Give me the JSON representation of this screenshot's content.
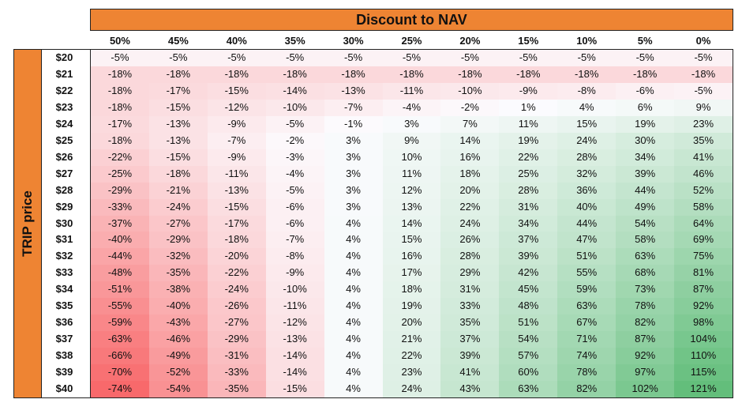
{
  "chart_data": {
    "type": "heatmap",
    "title": "Discount to NAV",
    "ylabel": "TRIP price",
    "x": [
      "50%",
      "45%",
      "40%",
      "35%",
      "30%",
      "25%",
      "20%",
      "15%",
      "10%",
      "5%",
      "0%"
    ],
    "y": [
      "$20",
      "$21",
      "$22",
      "$23",
      "$24",
      "$25",
      "$26",
      "$27",
      "$28",
      "$29",
      "$30",
      "$31",
      "$32",
      "$33",
      "$34",
      "$35",
      "$36",
      "$37",
      "$38",
      "$39",
      "$40"
    ],
    "values": [
      [
        "-5%",
        "-5%",
        "-5%",
        "-5%",
        "-5%",
        "-5%",
        "-5%",
        "-5%",
        "-5%",
        "-5%",
        "-5%"
      ],
      [
        "-18%",
        "-18%",
        "-18%",
        "-18%",
        "-18%",
        "-18%",
        "-18%",
        "-18%",
        "-18%",
        "-18%",
        "-18%"
      ],
      [
        "-18%",
        "-17%",
        "-15%",
        "-14%",
        "-13%",
        "-11%",
        "-10%",
        "-9%",
        "-8%",
        "-6%",
        "-5%"
      ],
      [
        "-18%",
        "-15%",
        "-12%",
        "-10%",
        "-7%",
        "-4%",
        "-2%",
        "1%",
        "4%",
        "6%",
        "9%"
      ],
      [
        "-17%",
        "-13%",
        "-9%",
        "-5%",
        "-1%",
        "3%",
        "7%",
        "11%",
        "15%",
        "19%",
        "23%"
      ],
      [
        "-18%",
        "-13%",
        "-7%",
        "-2%",
        "3%",
        "9%",
        "14%",
        "19%",
        "24%",
        "30%",
        "35%"
      ],
      [
        "-22%",
        "-15%",
        "-9%",
        "-3%",
        "3%",
        "10%",
        "16%",
        "22%",
        "28%",
        "34%",
        "41%"
      ],
      [
        "-25%",
        "-18%",
        "-11%",
        "-4%",
        "3%",
        "11%",
        "18%",
        "25%",
        "32%",
        "39%",
        "46%"
      ],
      [
        "-29%",
        "-21%",
        "-13%",
        "-5%",
        "3%",
        "12%",
        "20%",
        "28%",
        "36%",
        "44%",
        "52%"
      ],
      [
        "-33%",
        "-24%",
        "-15%",
        "-6%",
        "3%",
        "13%",
        "22%",
        "31%",
        "40%",
        "49%",
        "58%"
      ],
      [
        "-37%",
        "-27%",
        "-17%",
        "-6%",
        "4%",
        "14%",
        "24%",
        "34%",
        "44%",
        "54%",
        "64%"
      ],
      [
        "-40%",
        "-29%",
        "-18%",
        "-7%",
        "4%",
        "15%",
        "26%",
        "37%",
        "47%",
        "58%",
        "69%"
      ],
      [
        "-44%",
        "-32%",
        "-20%",
        "-8%",
        "4%",
        "16%",
        "28%",
        "39%",
        "51%",
        "63%",
        "75%"
      ],
      [
        "-48%",
        "-35%",
        "-22%",
        "-9%",
        "4%",
        "17%",
        "29%",
        "42%",
        "55%",
        "68%",
        "81%"
      ],
      [
        "-51%",
        "-38%",
        "-24%",
        "-10%",
        "4%",
        "18%",
        "31%",
        "45%",
        "59%",
        "73%",
        "87%"
      ],
      [
        "-55%",
        "-40%",
        "-26%",
        "-11%",
        "4%",
        "19%",
        "33%",
        "48%",
        "63%",
        "78%",
        "92%"
      ],
      [
        "-59%",
        "-43%",
        "-27%",
        "-12%",
        "4%",
        "20%",
        "35%",
        "51%",
        "67%",
        "82%",
        "98%"
      ],
      [
        "-63%",
        "-46%",
        "-29%",
        "-13%",
        "4%",
        "21%",
        "37%",
        "54%",
        "71%",
        "87%",
        "104%"
      ],
      [
        "-66%",
        "-49%",
        "-31%",
        "-14%",
        "4%",
        "22%",
        "39%",
        "57%",
        "74%",
        "92%",
        "110%"
      ],
      [
        "-70%",
        "-52%",
        "-33%",
        "-14%",
        "4%",
        "23%",
        "41%",
        "60%",
        "78%",
        "97%",
        "115%"
      ],
      [
        "-74%",
        "-54%",
        "-35%",
        "-15%",
        "4%",
        "24%",
        "43%",
        "63%",
        "82%",
        "102%",
        "121%"
      ]
    ],
    "color_scale": {
      "negative": "#f8696b",
      "neutral": "#fcfcff",
      "positive": "#63be7b"
    }
  }
}
